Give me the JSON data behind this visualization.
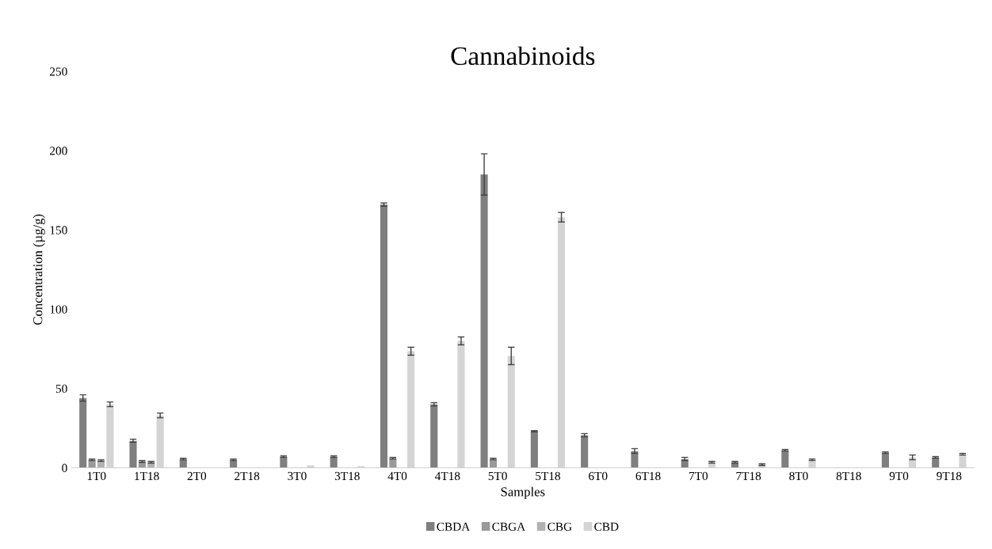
{
  "chart_data": {
    "type": "bar",
    "title": "Cannabinoids",
    "xlabel": "Samples",
    "ylabel": "Concentration (µg/g)",
    "categories": [
      "1T0",
      "1T18",
      "2T0",
      "2T18",
      "3T0",
      "3T18",
      "4T0",
      "4T18",
      "5T0",
      "5T18",
      "6T0",
      "6T18",
      "7T0",
      "7T18",
      "8T0",
      "8T18",
      "9T0",
      "9T18"
    ],
    "series": [
      {
        "name": "CBDA",
        "color": "#7f7f7f",
        "values": [
          44,
          17,
          5.5,
          5,
          7,
          7,
          166,
          40,
          185,
          23,
          20.5,
          10.5,
          5.5,
          3.5,
          11,
          null,
          9.5,
          6.5
        ],
        "errors": [
          2,
          1,
          0.5,
          0.5,
          0.5,
          0.5,
          1,
          1,
          13,
          0.3,
          1,
          1.5,
          1,
          0.5,
          0.5,
          null,
          0.5,
          0.5
        ]
      },
      {
        "name": "CBGA",
        "color": "#999999",
        "values": [
          5,
          4,
          null,
          null,
          null,
          null,
          6,
          null,
          5.5,
          null,
          null,
          null,
          null,
          null,
          null,
          null,
          null,
          null
        ],
        "errors": [
          0.5,
          0.5,
          null,
          null,
          null,
          null,
          0.5,
          null,
          0.5,
          null,
          null,
          null,
          null,
          null,
          null,
          null,
          null,
          null
        ]
      },
      {
        "name": "CBG",
        "color": "#b2b2b2",
        "values": [
          4.5,
          3.5,
          null,
          null,
          null,
          null,
          null,
          null,
          null,
          null,
          null,
          null,
          null,
          null,
          null,
          null,
          null,
          null
        ],
        "errors": [
          0.5,
          0.5,
          null,
          null,
          null,
          null,
          null,
          null,
          null,
          null,
          null,
          null,
          null,
          null,
          null,
          null,
          null,
          null
        ]
      },
      {
        "name": "CBD",
        "color": "#d4d4d4",
        "values": [
          40,
          33,
          null,
          null,
          1.5,
          1,
          73.5,
          80,
          70.5,
          158,
          null,
          null,
          3.5,
          2,
          5,
          null,
          6.5,
          8.5
        ],
        "errors": [
          1.5,
          1.5,
          null,
          null,
          null,
          null,
          2.5,
          2.5,
          5.5,
          3,
          null,
          null,
          0.5,
          0.5,
          0.5,
          null,
          1.5,
          0.5
        ]
      }
    ],
    "ylim": [
      0,
      250
    ],
    "yticks": [
      0,
      50,
      100,
      150,
      200,
      250
    ],
    "grid": false,
    "legend": "bottom"
  }
}
